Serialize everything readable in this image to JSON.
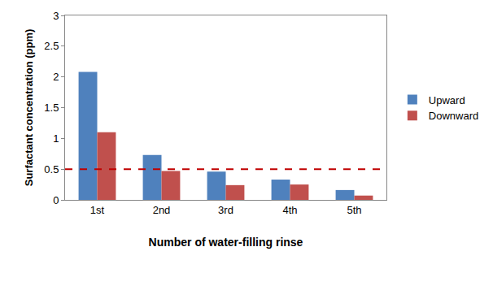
{
  "chart_data": {
    "type": "bar",
    "x_label": "Number of water-filling rinse",
    "y_label": "Surfactant concentration (ppm)",
    "categories": [
      "1st",
      "2nd",
      "3rd",
      "4th",
      "5th"
    ],
    "series": [
      {
        "name": "Upward",
        "color": "#4f81bd",
        "values": [
          2.08,
          0.73,
          0.46,
          0.33,
          0.16
        ]
      },
      {
        "name": "Downward",
        "color": "#c0504d",
        "values": [
          1.1,
          0.47,
          0.24,
          0.25,
          0.07
        ]
      }
    ],
    "reference_line": {
      "value": 0.5,
      "color": "#c00000",
      "line_style": "dash"
    },
    "ylim": [
      0,
      3
    ],
    "yticks": [
      0,
      0.5,
      1,
      1.5,
      2,
      2.5,
      3
    ],
    "grid": false,
    "legend": "right"
  }
}
